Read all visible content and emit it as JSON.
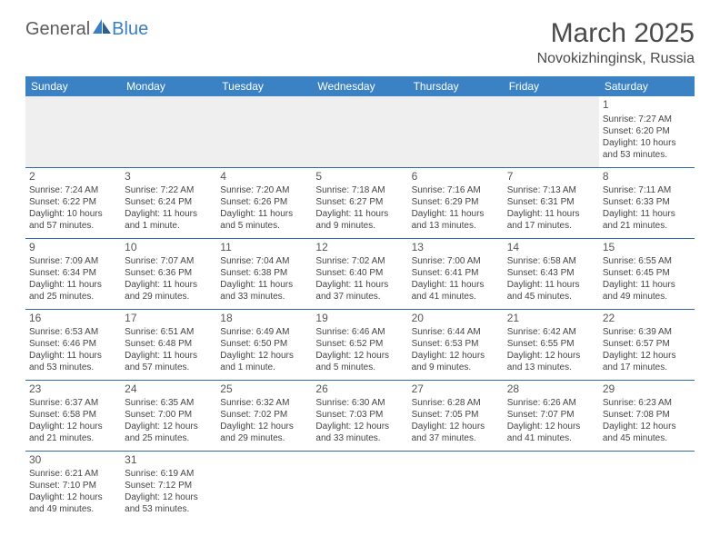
{
  "logo": {
    "text1": "General",
    "text2": "Blue"
  },
  "title": "March 2025",
  "location": "Novokizhinginsk, Russia",
  "weekdays": [
    "Sunday",
    "Monday",
    "Tuesday",
    "Wednesday",
    "Thursday",
    "Friday",
    "Saturday"
  ],
  "colors": {
    "header_bg": "#3a82c4",
    "header_fg": "#ffffff",
    "border": "#2f6aa8",
    "empty": "#efefef"
  },
  "cells": [
    [
      {
        "empty": true
      },
      {
        "empty": true
      },
      {
        "empty": true
      },
      {
        "empty": true
      },
      {
        "empty": true
      },
      {
        "empty": true
      },
      {
        "n": "1",
        "r": "Sunrise: 7:27 AM",
        "s": "Sunset: 6:20 PM",
        "d1": "Daylight: 10 hours",
        "d2": "and 53 minutes."
      }
    ],
    [
      {
        "n": "2",
        "r": "Sunrise: 7:24 AM",
        "s": "Sunset: 6:22 PM",
        "d1": "Daylight: 10 hours",
        "d2": "and 57 minutes."
      },
      {
        "n": "3",
        "r": "Sunrise: 7:22 AM",
        "s": "Sunset: 6:24 PM",
        "d1": "Daylight: 11 hours",
        "d2": "and 1 minute."
      },
      {
        "n": "4",
        "r": "Sunrise: 7:20 AM",
        "s": "Sunset: 6:26 PM",
        "d1": "Daylight: 11 hours",
        "d2": "and 5 minutes."
      },
      {
        "n": "5",
        "r": "Sunrise: 7:18 AM",
        "s": "Sunset: 6:27 PM",
        "d1": "Daylight: 11 hours",
        "d2": "and 9 minutes."
      },
      {
        "n": "6",
        "r": "Sunrise: 7:16 AM",
        "s": "Sunset: 6:29 PM",
        "d1": "Daylight: 11 hours",
        "d2": "and 13 minutes."
      },
      {
        "n": "7",
        "r": "Sunrise: 7:13 AM",
        "s": "Sunset: 6:31 PM",
        "d1": "Daylight: 11 hours",
        "d2": "and 17 minutes."
      },
      {
        "n": "8",
        "r": "Sunrise: 7:11 AM",
        "s": "Sunset: 6:33 PM",
        "d1": "Daylight: 11 hours",
        "d2": "and 21 minutes."
      }
    ],
    [
      {
        "n": "9",
        "r": "Sunrise: 7:09 AM",
        "s": "Sunset: 6:34 PM",
        "d1": "Daylight: 11 hours",
        "d2": "and 25 minutes."
      },
      {
        "n": "10",
        "r": "Sunrise: 7:07 AM",
        "s": "Sunset: 6:36 PM",
        "d1": "Daylight: 11 hours",
        "d2": "and 29 minutes."
      },
      {
        "n": "11",
        "r": "Sunrise: 7:04 AM",
        "s": "Sunset: 6:38 PM",
        "d1": "Daylight: 11 hours",
        "d2": "and 33 minutes."
      },
      {
        "n": "12",
        "r": "Sunrise: 7:02 AM",
        "s": "Sunset: 6:40 PM",
        "d1": "Daylight: 11 hours",
        "d2": "and 37 minutes."
      },
      {
        "n": "13",
        "r": "Sunrise: 7:00 AM",
        "s": "Sunset: 6:41 PM",
        "d1": "Daylight: 11 hours",
        "d2": "and 41 minutes."
      },
      {
        "n": "14",
        "r": "Sunrise: 6:58 AM",
        "s": "Sunset: 6:43 PM",
        "d1": "Daylight: 11 hours",
        "d2": "and 45 minutes."
      },
      {
        "n": "15",
        "r": "Sunrise: 6:55 AM",
        "s": "Sunset: 6:45 PM",
        "d1": "Daylight: 11 hours",
        "d2": "and 49 minutes."
      }
    ],
    [
      {
        "n": "16",
        "r": "Sunrise: 6:53 AM",
        "s": "Sunset: 6:46 PM",
        "d1": "Daylight: 11 hours",
        "d2": "and 53 minutes."
      },
      {
        "n": "17",
        "r": "Sunrise: 6:51 AM",
        "s": "Sunset: 6:48 PM",
        "d1": "Daylight: 11 hours",
        "d2": "and 57 minutes."
      },
      {
        "n": "18",
        "r": "Sunrise: 6:49 AM",
        "s": "Sunset: 6:50 PM",
        "d1": "Daylight: 12 hours",
        "d2": "and 1 minute."
      },
      {
        "n": "19",
        "r": "Sunrise: 6:46 AM",
        "s": "Sunset: 6:52 PM",
        "d1": "Daylight: 12 hours",
        "d2": "and 5 minutes."
      },
      {
        "n": "20",
        "r": "Sunrise: 6:44 AM",
        "s": "Sunset: 6:53 PM",
        "d1": "Daylight: 12 hours",
        "d2": "and 9 minutes."
      },
      {
        "n": "21",
        "r": "Sunrise: 6:42 AM",
        "s": "Sunset: 6:55 PM",
        "d1": "Daylight: 12 hours",
        "d2": "and 13 minutes."
      },
      {
        "n": "22",
        "r": "Sunrise: 6:39 AM",
        "s": "Sunset: 6:57 PM",
        "d1": "Daylight: 12 hours",
        "d2": "and 17 minutes."
      }
    ],
    [
      {
        "n": "23",
        "r": "Sunrise: 6:37 AM",
        "s": "Sunset: 6:58 PM",
        "d1": "Daylight: 12 hours",
        "d2": "and 21 minutes."
      },
      {
        "n": "24",
        "r": "Sunrise: 6:35 AM",
        "s": "Sunset: 7:00 PM",
        "d1": "Daylight: 12 hours",
        "d2": "and 25 minutes."
      },
      {
        "n": "25",
        "r": "Sunrise: 6:32 AM",
        "s": "Sunset: 7:02 PM",
        "d1": "Daylight: 12 hours",
        "d2": "and 29 minutes."
      },
      {
        "n": "26",
        "r": "Sunrise: 6:30 AM",
        "s": "Sunset: 7:03 PM",
        "d1": "Daylight: 12 hours",
        "d2": "and 33 minutes."
      },
      {
        "n": "27",
        "r": "Sunrise: 6:28 AM",
        "s": "Sunset: 7:05 PM",
        "d1": "Daylight: 12 hours",
        "d2": "and 37 minutes."
      },
      {
        "n": "28",
        "r": "Sunrise: 6:26 AM",
        "s": "Sunset: 7:07 PM",
        "d1": "Daylight: 12 hours",
        "d2": "and 41 minutes."
      },
      {
        "n": "29",
        "r": "Sunrise: 6:23 AM",
        "s": "Sunset: 7:08 PM",
        "d1": "Daylight: 12 hours",
        "d2": "and 45 minutes."
      }
    ],
    [
      {
        "n": "30",
        "r": "Sunrise: 6:21 AM",
        "s": "Sunset: 7:10 PM",
        "d1": "Daylight: 12 hours",
        "d2": "and 49 minutes."
      },
      {
        "n": "31",
        "r": "Sunrise: 6:19 AM",
        "s": "Sunset: 7:12 PM",
        "d1": "Daylight: 12 hours",
        "d2": "and 53 minutes."
      },
      {
        "empty": true
      },
      {
        "empty": true
      },
      {
        "empty": true
      },
      {
        "empty": true
      },
      {
        "empty": true
      }
    ]
  ]
}
